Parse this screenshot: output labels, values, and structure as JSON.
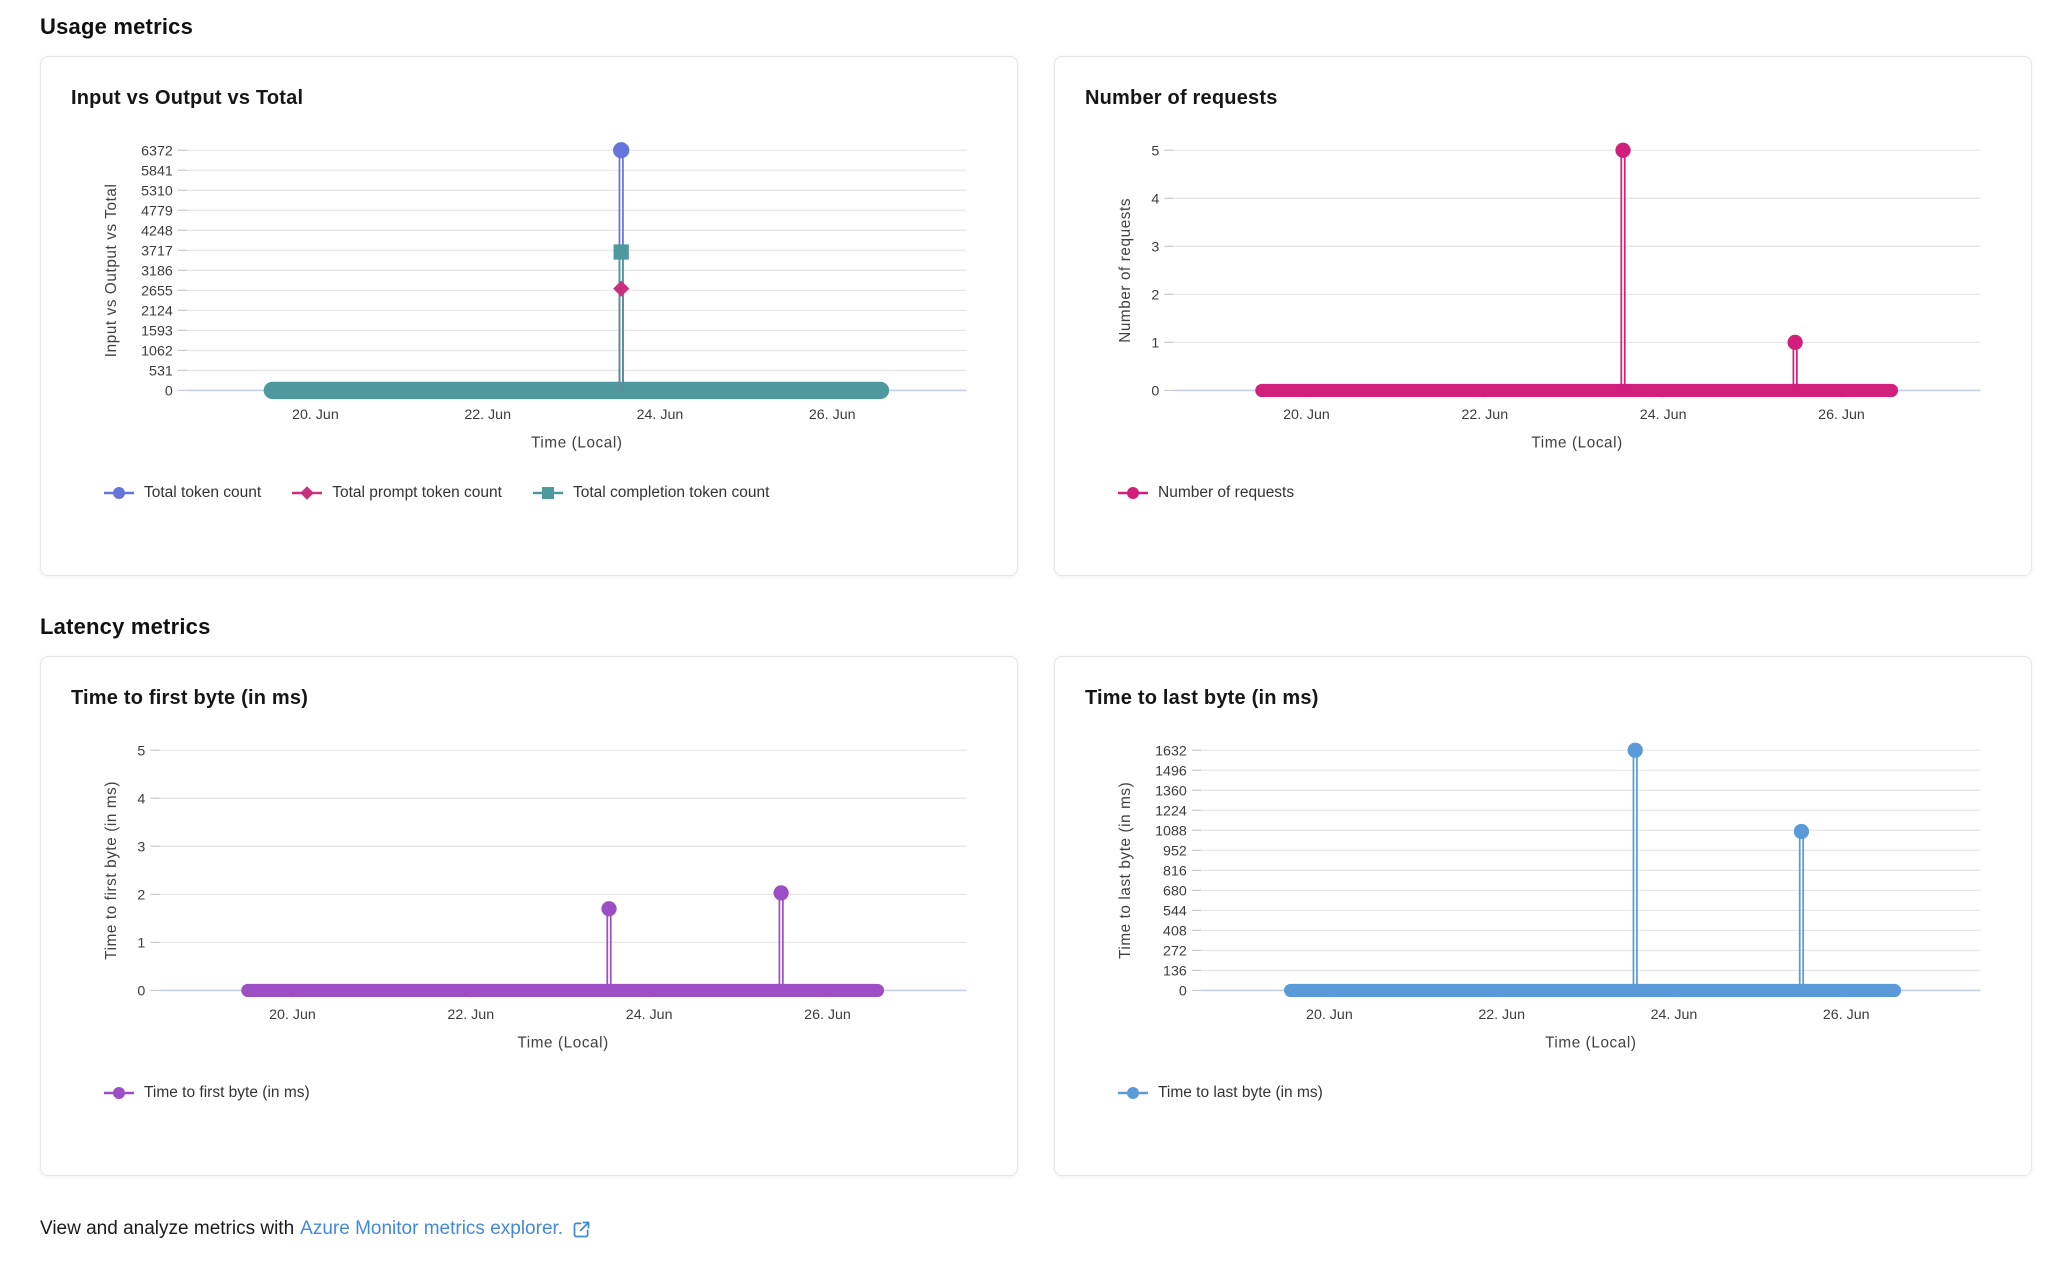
{
  "page": {
    "usage_heading": "Usage metrics",
    "latency_heading": "Latency metrics",
    "footer": {
      "text_before": "View and analyze metrics with",
      "link_text": "Azure Monitor metrics explorer.",
      "icon": "external-link-icon",
      "link_color": "#4389d9"
    }
  },
  "colors": {
    "gridline": "#e8e8ea",
    "axis_line": "#c5cfe8",
    "tick_text": "#3c3c3c"
  },
  "chart_data": [
    {
      "type": "line",
      "title": "Input vs Output vs Total",
      "ylabel": "Input vs Output vs Total",
      "xlabel": "Time (Local)",
      "yticks": [
        6372,
        5841,
        5310,
        4779,
        4248,
        3717,
        3186,
        2655,
        2124,
        1593,
        1062,
        531,
        0
      ],
      "ylim": [
        0,
        6372
      ],
      "xlim_days_june": [
        18.51,
        27.56
      ],
      "xticks": [
        {
          "day": 20,
          "label": "20. Jun"
        },
        {
          "day": 22,
          "label": "22. Jun"
        },
        {
          "day": 24,
          "label": "24. Jun"
        },
        {
          "day": 26,
          "label": "26. Jun"
        }
      ],
      "grid": true,
      "legend_position": "bottom-left",
      "baseline_band": {
        "from_day": 19.5,
        "to_day": 26.56,
        "value": 0,
        "color": "#4E999E",
        "width": 17
      },
      "series": [
        {
          "name": "Total token count",
          "color": "#6474D8",
          "marker": "circle",
          "points": [
            {
              "day": 23.55,
              "value": 6372
            }
          ]
        },
        {
          "name": "Total prompt token count",
          "color": "#C9307E",
          "marker": "diamond",
          "points": [
            {
              "day": 23.55,
              "value": 2700
            }
          ]
        },
        {
          "name": "Total completion token count",
          "color": "#4E999E",
          "marker": "square",
          "points": [
            {
              "day": 23.55,
              "value": 3672
            }
          ]
        }
      ]
    },
    {
      "type": "line",
      "title": "Number of requests",
      "ylabel": "Number of requests",
      "xlabel": "Time (Local)",
      "yticks": [
        5,
        4,
        3,
        2,
        1,
        0
      ],
      "ylim": [
        0,
        5
      ],
      "xlim_days_june": [
        18.51,
        27.56
      ],
      "xticks": [
        {
          "day": 20,
          "label": "20. Jun"
        },
        {
          "day": 22,
          "label": "22. Jun"
        },
        {
          "day": 24,
          "label": "24. Jun"
        },
        {
          "day": 26,
          "label": "26. Jun"
        }
      ],
      "grid": true,
      "legend_position": "bottom-left",
      "baseline_band": {
        "from_day": 19.5,
        "to_day": 26.56,
        "value": 0,
        "color": "#D01F7D",
        "width": 13
      },
      "series": [
        {
          "name": "Number of requests",
          "color": "#D01F7D",
          "marker": "circle",
          "points": [
            {
              "day": 23.55,
              "value": 5
            },
            {
              "day": 25.48,
              "value": 1
            }
          ]
        }
      ]
    },
    {
      "type": "line",
      "title": "Time to first byte (in ms)",
      "ylabel": "Time to first byte (in ms)",
      "xlabel": "Time (Local)",
      "yticks": [
        5,
        4,
        3,
        2,
        1,
        0
      ],
      "ylim": [
        0,
        5
      ],
      "xlim_days_june": [
        18.51,
        27.56
      ],
      "xticks": [
        {
          "day": 20,
          "label": "20. Jun"
        },
        {
          "day": 22,
          "label": "22. Jun"
        },
        {
          "day": 24,
          "label": "24. Jun"
        },
        {
          "day": 26,
          "label": "26. Jun"
        }
      ],
      "grid": true,
      "legend_position": "bottom-left",
      "baseline_band": {
        "from_day": 19.5,
        "to_day": 26.56,
        "value": 0,
        "color": "#9C4FC4",
        "width": 13
      },
      "series": [
        {
          "name": "Time to first byte (in ms)",
          "color": "#9C4FC4",
          "marker": "circle",
          "points": [
            {
              "day": 23.55,
              "value": 1.7
            },
            {
              "day": 25.48,
              "value": 2.03
            }
          ]
        }
      ]
    },
    {
      "type": "line",
      "title": "Time to last byte (in ms)",
      "ylabel": "Time to last byte (in ms)",
      "xlabel": "Time (Local)",
      "yticks": [
        1632,
        1496,
        1360,
        1224,
        1088,
        952,
        816,
        680,
        544,
        408,
        272,
        136,
        0
      ],
      "ylim": [
        0,
        1632
      ],
      "xlim_days_june": [
        18.51,
        27.56
      ],
      "xticks": [
        {
          "day": 20,
          "label": "20. Jun"
        },
        {
          "day": 22,
          "label": "22. Jun"
        },
        {
          "day": 24,
          "label": "24. Jun"
        },
        {
          "day": 26,
          "label": "26. Jun"
        }
      ],
      "grid": true,
      "legend_position": "bottom-left",
      "baseline_band": {
        "from_day": 19.55,
        "to_day": 26.56,
        "value": 0,
        "color": "#5A9AD8",
        "width": 13
      },
      "series": [
        {
          "name": "Time to last byte (in ms)",
          "color": "#5A9AD8",
          "marker": "circle",
          "points": [
            {
              "day": 23.55,
              "value": 1632
            },
            {
              "day": 25.48,
              "value": 1080
            }
          ]
        }
      ]
    }
  ]
}
